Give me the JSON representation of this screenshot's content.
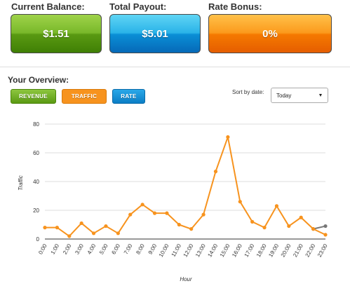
{
  "stats": {
    "balance": {
      "label": "Current Balance:",
      "value": "$1.51"
    },
    "payout": {
      "label": "Total Payout:",
      "value": "$5.01"
    },
    "bonus": {
      "label": "Rate Bonus:",
      "value": "0%"
    }
  },
  "overview": {
    "title": "Your Overview:",
    "tabs": {
      "revenue": "REVENUE",
      "traffic": "TRAFFIC",
      "rate": "RATE"
    },
    "sort_label": "Sort by date:",
    "sort_value": "Today"
  },
  "colors": {
    "series": "#f7931e",
    "series_tail": "#777777",
    "grid": "#dddddd"
  },
  "chart_data": {
    "type": "line",
    "xlabel": "Hour",
    "ylabel": "Traffic",
    "ylim": [
      0,
      80
    ],
    "yticks": [
      0,
      20,
      40,
      60,
      80
    ],
    "grid": true,
    "categories": [
      "0:00",
      "1:00",
      "2:00",
      "3:00",
      "4:00",
      "5:00",
      "6:00",
      "7:00",
      "8:00",
      "9:00",
      "10:00",
      "11:00",
      "12:00",
      "13:00",
      "14:00",
      "15:00",
      "16:00",
      "17:00",
      "18:00",
      "19:00",
      "20:00",
      "21:00",
      "22:00",
      "23:00"
    ],
    "series": [
      {
        "values": [
          8,
          8,
          2,
          11,
          4,
          9,
          4,
          17,
          24,
          18,
          18,
          10,
          7,
          17,
          47,
          71,
          26,
          12,
          8,
          23,
          9,
          15,
          7,
          3
        ]
      },
      {
        "values": [
          null,
          null,
          null,
          null,
          null,
          null,
          null,
          null,
          null,
          null,
          null,
          null,
          null,
          null,
          null,
          null,
          null,
          null,
          null,
          null,
          null,
          null,
          7,
          9
        ]
      }
    ]
  }
}
